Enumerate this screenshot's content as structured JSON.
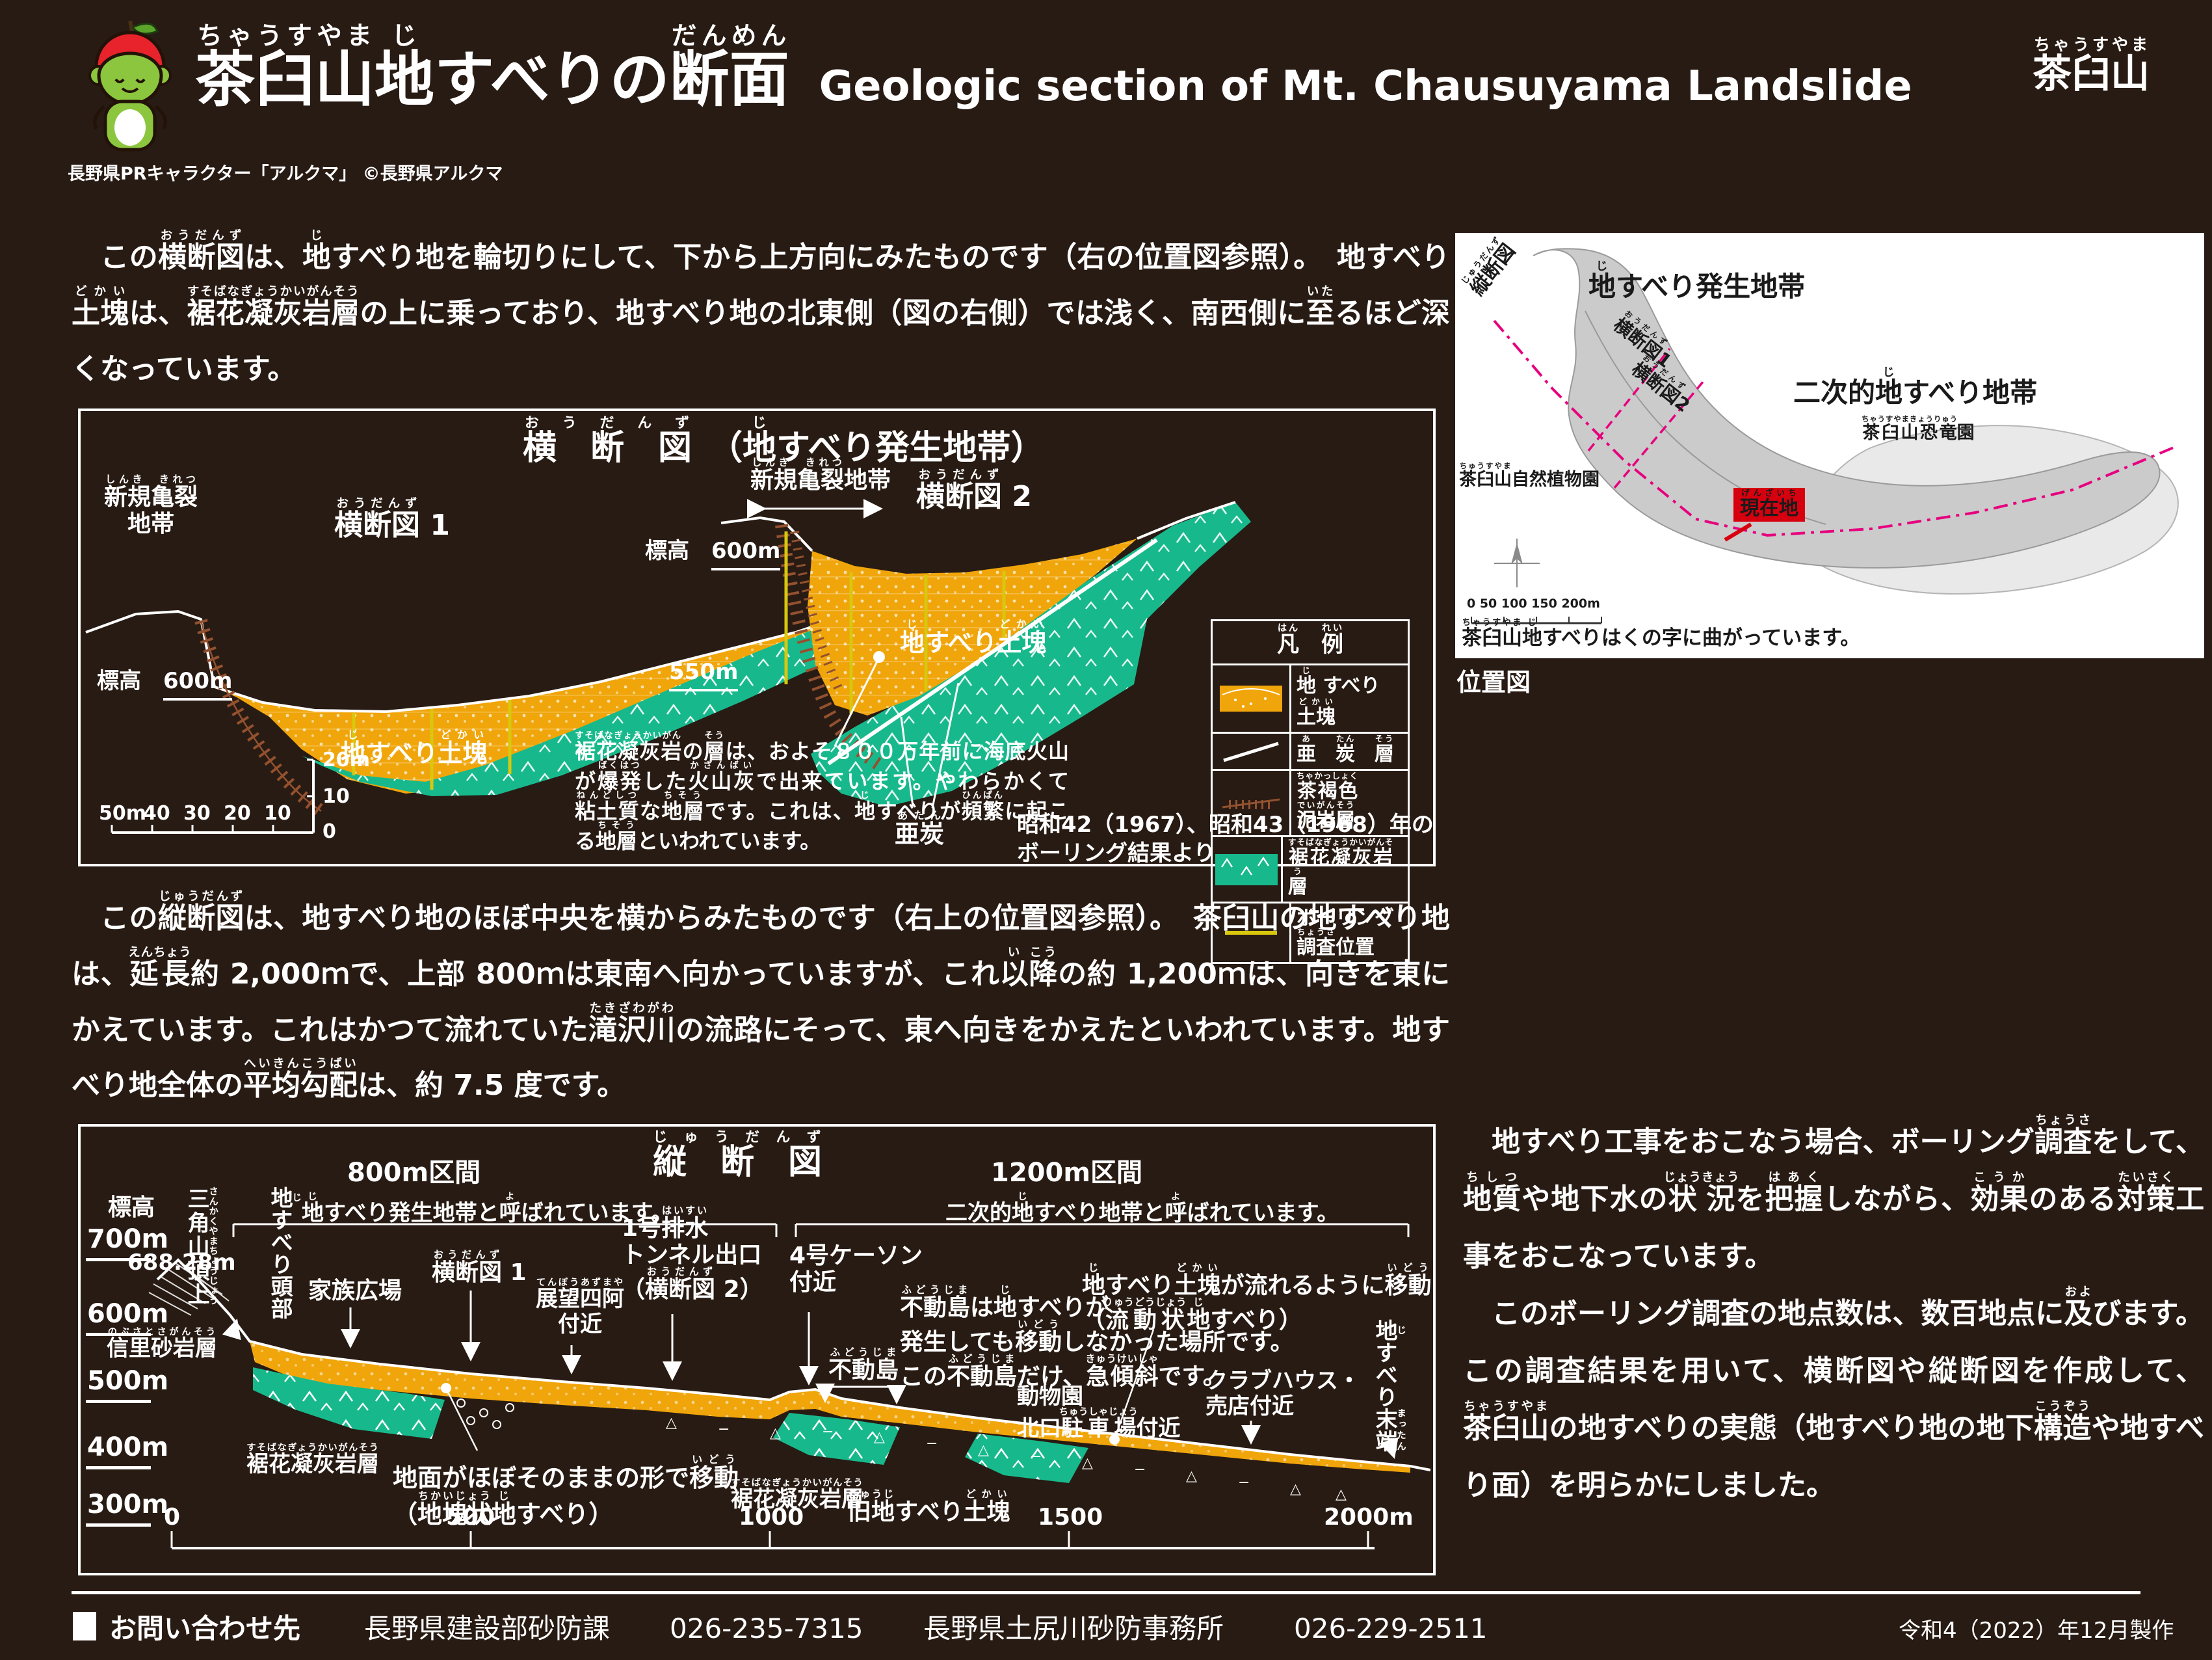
{
  "colors": {
    "bg": "#281b13",
    "orange": "#f0a50a",
    "green": "#17b98c",
    "yellow": "#d9c70e",
    "hatch_brown": "#93512f",
    "pink": "#e6007e",
    "red": "#d7000f",
    "map_gray": "#cbcbcb",
    "map_gray_light": "#e9e9e9",
    "brown_label": "#8a682a"
  },
  "header": {
    "title": [
      {
        "t": "茶臼山",
        "r": "ちゃうすやま"
      },
      {
        "t": "地",
        "r": "じ"
      },
      {
        "t": "すべりの"
      },
      {
        "t": "断面",
        "r": "だんめん"
      }
    ],
    "subtitle_en": "Geologic section of Mt. Chausuyama Landslide",
    "logo": [
      {
        "t": "茶臼山",
        "r": "ちゃうすやま"
      }
    ],
    "credit": "長野県PRキャラクター「アルクマ」 ©長野県アルクマ"
  },
  "intro": {
    "p1": [
      {
        "t": "　この"
      },
      {
        "t": "横断図",
        "r": "おうだんず"
      },
      {
        "t": "は、"
      },
      {
        "t": "地",
        "r": "じ"
      },
      {
        "t": "すべり地を輪切りにして、下から上方向にみたものです（右の位置図参照）。"
      },
      {
        "t": "　地すべり"
      },
      {
        "t": "土塊",
        "r": "どかい"
      },
      {
        "t": "は、"
      },
      {
        "t": "裾花凝灰岩層",
        "r": "すそばなぎょうかいがんそう"
      },
      {
        "t": "の上に乗っており、地すべり地の北東側（図の右側）では浅く、南西側に"
      },
      {
        "t": "至",
        "r": "いた"
      },
      {
        "t": "るほど深くなっています。"
      }
    ]
  },
  "cross_panel": {
    "title": [
      {
        "t": "横　断　図",
        "r": "お　う　だ　ん　ず"
      },
      {
        "t": "　（"
      },
      {
        "t": "地",
        "r": "じ"
      },
      {
        "t": "すべり発生地帯）"
      }
    ],
    "d1": {
      "crack1": [
        {
          "t": "新規亀裂",
          "r": "しんき　きれつ"
        }
      ],
      "crack2": "地帯",
      "name": [
        {
          "t": "横断図",
          "r": "おうだんず"
        },
        {
          "t": " 1"
        }
      ],
      "elev": "標高",
      "elev_v": "600m",
      "mass": [
        {
          "t": "地",
          "r": "じ"
        },
        {
          "t": "すべり"
        },
        {
          "t": "土塊",
          "r": "どかい"
        }
      ]
    },
    "d2": {
      "crack": [
        {
          "t": "新規亀裂",
          "r": "しんき　きれつ"
        },
        {
          "t": "地帯"
        }
      ],
      "name": [
        {
          "t": "横断図",
          "r": "おうだんず"
        },
        {
          "t": " 2"
        }
      ],
      "elev": "標高",
      "elev_v": "600m",
      "elev2": "550m",
      "mass": [
        {
          "t": "地",
          "r": "じ"
        },
        {
          "t": "すべり"
        },
        {
          "t": "土塊",
          "r": "どかい"
        }
      ],
      "atan": [
        {
          "t": "亜炭",
          "r": "あたん"
        }
      ]
    },
    "legend": {
      "title": [
        {
          "t": "凡",
          "r": "はん"
        },
        {
          "t": "　"
        },
        {
          "t": "例",
          "r": "れい"
        }
      ],
      "rows": [
        {
          "label": [
            {
              "t": "地",
              "r": "じ"
            },
            {
              "t": " すべり "
            },
            {
              "t": "土塊",
              "r": "どかい"
            }
          ]
        },
        {
          "label": [
            {
              "t": "亜",
              "r": "あ"
            },
            {
              "t": "　"
            },
            {
              "t": "炭",
              "r": "たん"
            },
            {
              "t": "　"
            },
            {
              "t": "層",
              "r": "そう"
            }
          ]
        },
        {
          "label": [
            {
              "t": "茶褐色",
              "r": "ちゃかっしょく"
            },
            {
              "t": " "
            },
            {
              "t": "泥岩層",
              "r": "でいがんそう"
            }
          ]
        },
        {
          "label": [
            {
              "t": "裾花凝灰岩層",
              "r": "すそばなぎょうかいがんそう"
            }
          ]
        },
        {
          "label": [
            {
              "t": "ボーリング"
            },
            {
              "t": "調査",
              "r": "ちょうさ"
            },
            {
              "t": "位置"
            }
          ]
        }
      ]
    },
    "explain": [
      {
        "t": "裾花凝灰岩",
        "r": "すそばなぎょうかいがん"
      },
      {
        "t": "の"
      },
      {
        "t": "層",
        "r": "そう"
      },
      {
        "t": "は、およそ８００万年前に海底火山が"
      },
      {
        "t": "爆発",
        "r": "ばくはつ"
      },
      {
        "t": "した"
      },
      {
        "t": "火山灰",
        "r": "かざんばい"
      },
      {
        "t": "で出来ています。やわらかくて"
      },
      {
        "t": "粘土質",
        "r": "ねんどしつ"
      },
      {
        "t": "な"
      },
      {
        "t": "地層",
        "r": "ちそう"
      },
      {
        "t": "です。これは、"
      },
      {
        "t": "地",
        "r": "じ"
      },
      {
        "t": "すべりが"
      },
      {
        "t": "頻繁",
        "r": "ひんぱん"
      },
      {
        "t": "に起こる"
      },
      {
        "t": "地層",
        "r": "ちそう"
      },
      {
        "t": "といわれています。"
      }
    ],
    "note1": "昭和42（1967）、昭和43（1968）年の",
    "note2": "ボーリング結果より",
    "scale_h": [
      "50m",
      "40",
      "30",
      "20",
      "10"
    ],
    "scale_v": [
      "20m",
      "10",
      "0"
    ]
  },
  "map": {
    "zone1": [
      {
        "t": "地",
        "r": "じ"
      },
      {
        "t": "すべり発生地帯"
      }
    ],
    "zone2": [
      {
        "t": "二次的"
      },
      {
        "t": "地",
        "r": "じ"
      },
      {
        "t": "すべり地帯"
      }
    ],
    "sec_long": [
      {
        "t": "縦断図",
        "r": "じゅうだんず"
      }
    ],
    "sec1": [
      {
        "t": "横断図",
        "r": "おうだんず"
      },
      {
        "t": "1"
      }
    ],
    "sec2": [
      {
        "t": "横断図",
        "r": "おうだんず"
      },
      {
        "t": "2"
      }
    ],
    "botanical": [
      {
        "t": "茶臼山",
        "r": "ちゅうすやま"
      },
      {
        "t": "自然植物園"
      }
    ],
    "dino": [
      {
        "t": "茶臼山恐竜",
        "r": "ちゃうすやまきょうりゅう"
      },
      {
        "t": "園"
      }
    ],
    "here": [
      {
        "t": "現在地",
        "r": "げんざいち"
      }
    ],
    "scale_text": "0    50   100   150   200m",
    "caption": [
      {
        "t": "茶臼山",
        "r": "ちゃうすやま"
      },
      {
        "t": "地",
        "r": "じ"
      },
      {
        "t": "すべりはくの字に曲がっています。"
      }
    ],
    "title_below": "位置図"
  },
  "mid": {
    "p2": [
      {
        "t": "　この"
      },
      {
        "t": "縦断図",
        "r": "じゅうだんず"
      },
      {
        "t": "は、地すべり地のほぼ中央を横からみたものです（右上の位置図参照）。"
      },
      {
        "t": "　茶臼山の地すべり地は、"
      },
      {
        "t": "延長",
        "r": "えんちょう"
      },
      {
        "t": "約 2,000ｍで、上部 800ｍは東南へ向かっていますが、これ"
      },
      {
        "t": "以",
        "r": "い"
      },
      {
        "t": "降",
        "r": "こう"
      },
      {
        "t": "の約 1,200ｍは、向きを東にかえています。これはかつて流れていた"
      },
      {
        "t": "滝沢川",
        "r": "たきざわがわ"
      },
      {
        "t": "の流路にそって、東へ向きをかえたといわれています。地すべり地全体の"
      },
      {
        "t": "平均勾配",
        "r": "へいきんこうばい"
      },
      {
        "t": "は、約 7.5 度です。"
      }
    ]
  },
  "long_panel": {
    "title": [
      {
        "t": "縦　断　図",
        "r": "じ　ゅ　う　だ　ん　ず"
      }
    ],
    "yaxis": "標高",
    "yticks": [
      "700m",
      "600m",
      "500m",
      "400m",
      "300m"
    ],
    "xticks": [
      "0",
      "500",
      "1000",
      "1500",
      "2000m"
    ],
    "span1_1": "800m区間",
    "span1_2": [
      {
        "t": "地",
        "r": "じ"
      },
      {
        "t": "すべり発生地帯と"
      },
      {
        "t": "呼",
        "r": "よ"
      },
      {
        "t": "ばれています。"
      }
    ],
    "span2_1": "1200m区間",
    "span2_2": [
      {
        "t": "二次的"
      },
      {
        "t": "地",
        "r": "じ"
      },
      {
        "t": "すべり地帯と"
      },
      {
        "t": "呼",
        "r": "よ"
      },
      {
        "t": "ばれています。"
      }
    ],
    "peak_v": [
      {
        "t": "三角山頂上",
        "r": "さんかくやまちょうじょう"
      }
    ],
    "head_v": [
      {
        "t": "地",
        "r": "じ"
      },
      {
        "t": "すべり頭部"
      }
    ],
    "elev_peak": "688.28m",
    "nobusato": [
      {
        "t": "信里砂岩層",
        "r": "のぶさとさがんそう"
      }
    ],
    "suso": [
      {
        "t": "裾花凝灰岩層",
        "r": "すそばなぎょうかいがんそう"
      }
    ],
    "kazoku": "家族広場",
    "sec1": [
      {
        "t": "横断図",
        "r": "おうだんず"
      },
      {
        "t": " 1"
      }
    ],
    "tenbo1": [
      {
        "t": "展望四阿",
        "r": "てんぼうあずまや"
      }
    ],
    "tenbo2": "付近",
    "haisui1": [
      {
        "t": "1号"
      },
      {
        "t": "排水",
        "r": "はいすい"
      }
    ],
    "haisui2": "トンネル出口",
    "haisui3": [
      {
        "t": "（"
      },
      {
        "t": "横断図",
        "r": "おうだんず"
      },
      {
        "t": " 2）"
      }
    ],
    "caisson1": "4号ケーソン",
    "caisson2": "付近",
    "fudo1": [
      {
        "t": "不動島",
        "r": "ふどうじま"
      },
      {
        "t": "は"
      },
      {
        "t": "地",
        "r": "じ"
      },
      {
        "t": "すべりが"
      }
    ],
    "fudo2": [
      {
        "t": "発生しても"
      },
      {
        "t": "移動",
        "r": "いどう"
      },
      {
        "t": "しなかった場所です。"
      }
    ],
    "fudo3": [
      {
        "t": "この"
      },
      {
        "t": "不動島",
        "r": "ふどうじま"
      },
      {
        "t": "だけ、"
      },
      {
        "t": "急傾斜",
        "r": "きゅうけいしゃ"
      },
      {
        "t": "です。"
      }
    ],
    "fudojima": [
      {
        "t": "不動島",
        "r": "ふどうじま"
      }
    ],
    "jimen1": [
      {
        "t": "地面がほぼそのままの形で"
      },
      {
        "t": "移動",
        "r": "いどう"
      }
    ],
    "jimen2": [
      {
        "t": "（"
      },
      {
        "t": "地塊状",
        "r": "ちかいじょう"
      },
      {
        "t": "地",
        "r": "じ"
      },
      {
        "t": "すべり）"
      }
    ],
    "zoo1": "動物園",
    "zoo2": [
      {
        "t": "北口"
      },
      {
        "t": "駐車場",
        "r": "ちゅうしゃじょう"
      },
      {
        "t": "付近"
      }
    ],
    "flow1": [
      {
        "t": "地",
        "r": "じ"
      },
      {
        "t": "すべり"
      },
      {
        "t": "土塊",
        "r": "どかい"
      },
      {
        "t": "が流れるように"
      },
      {
        "t": "移動",
        "r": "いどう"
      }
    ],
    "flow2": [
      {
        "t": "（"
      },
      {
        "t": "流動状",
        "r": "りゅうどうじょう"
      },
      {
        "t": "地",
        "r": "じ"
      },
      {
        "t": "すべり）"
      }
    ],
    "old_mass": [
      {
        "t": "旧地",
        "r": "きゅうじ"
      },
      {
        "t": "すべり"
      },
      {
        "t": "土塊",
        "r": "どかい"
      }
    ],
    "club1": "クラブハウス・",
    "club2": "売店付近",
    "end_v": [
      {
        "t": "地",
        "r": "じ"
      },
      {
        "t": "すべり"
      },
      {
        "t": "末端",
        "r": "まったん"
      }
    ]
  },
  "outro": {
    "p1": [
      {
        "t": "　地すべり工事をおこなう場合、ボーリング"
      },
      {
        "t": "調査",
        "r": "ちょうさ"
      },
      {
        "t": "をして、"
      },
      {
        "t": "地質",
        "r": "ちしつ"
      },
      {
        "t": "や地下水の"
      },
      {
        "t": "状況",
        "r": "じょうきょう"
      },
      {
        "t": "を"
      },
      {
        "t": "把握",
        "r": "はあく"
      },
      {
        "t": "しながら、"
      },
      {
        "t": "効果",
        "r": "こうか"
      },
      {
        "t": "のある"
      },
      {
        "t": "対策",
        "r": "たいさく"
      },
      {
        "t": "工事をおこなっています。"
      }
    ],
    "p2": [
      {
        "t": "　このボーリング調査の地点数は、数百地点に"
      },
      {
        "t": "及",
        "r": "およ"
      },
      {
        "t": "びます。この調査結果を用いて、横断図や縦断図を作成して、"
      },
      {
        "t": "茶臼山",
        "r": "ちゃうすやま"
      },
      {
        "t": "の地すべりの実態（地すべり地の地下"
      },
      {
        "t": "構造",
        "r": "こうぞう"
      },
      {
        "t": "や地すべり面）を明らかにしました。"
      }
    ]
  },
  "footer": {
    "heading": "お問い合わせ先",
    "org1": "長野県建設部砂防課",
    "tel1": "026-235-7315",
    "org2": "長野県土尻川砂防事務所",
    "tel2": "026-229-2511",
    "made": "令和4（2022）年12月製作"
  }
}
